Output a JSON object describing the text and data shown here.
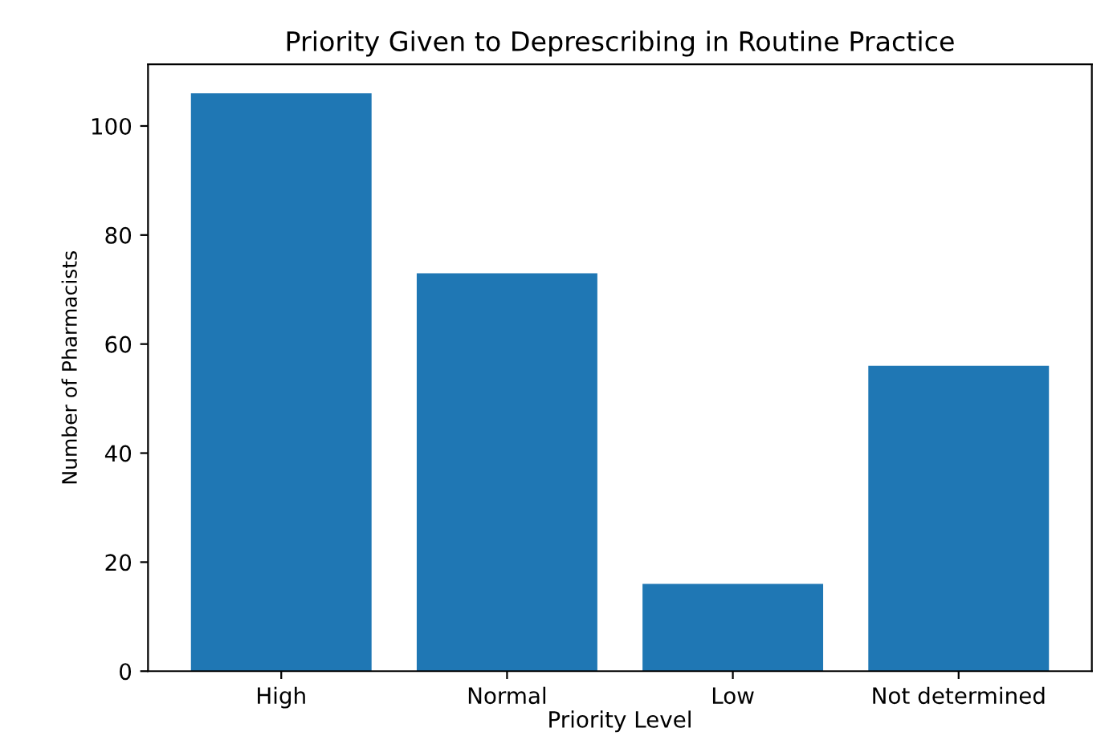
{
  "chart_data": {
    "type": "bar",
    "title": "Priority Given to Deprescribing in Routine Practice",
    "xlabel": "Priority Level",
    "ylabel": "Number of Pharmacists",
    "categories": [
      "High",
      "Normal",
      "Low",
      "Not determined"
    ],
    "values": [
      106,
      73,
      16,
      56
    ],
    "color": "#1f77b4",
    "ylim": [
      0,
      111.3
    ],
    "yticks": [
      0,
      20,
      40,
      60,
      80,
      100
    ],
    "grid": false
  }
}
